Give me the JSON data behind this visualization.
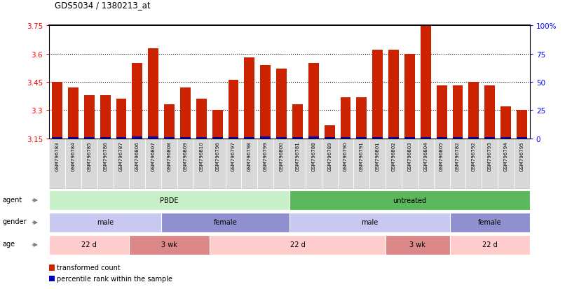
{
  "title": "GDS5034 / 1380213_at",
  "samples": [
    "GSM796783",
    "GSM796784",
    "GSM796785",
    "GSM796786",
    "GSM796787",
    "GSM796806",
    "GSM796807",
    "GSM796808",
    "GSM796809",
    "GSM796810",
    "GSM796796",
    "GSM796797",
    "GSM796798",
    "GSM796799",
    "GSM796800",
    "GSM796781",
    "GSM796788",
    "GSM796789",
    "GSM796790",
    "GSM796791",
    "GSM796801",
    "GSM796802",
    "GSM796803",
    "GSM796804",
    "GSM796805",
    "GSM796782",
    "GSM796792",
    "GSM796793",
    "GSM796794",
    "GSM796795"
  ],
  "red_values": [
    3.45,
    3.42,
    3.38,
    3.38,
    3.36,
    3.55,
    3.63,
    3.33,
    3.42,
    3.36,
    3.3,
    3.46,
    3.58,
    3.54,
    3.52,
    3.33,
    3.55,
    3.22,
    3.37,
    3.37,
    3.62,
    3.62,
    3.6,
    3.76,
    3.43,
    3.43,
    3.45,
    3.43,
    3.32,
    3.3
  ],
  "blue_heights": [
    0.008,
    0.008,
    0.008,
    0.008,
    0.008,
    0.01,
    0.01,
    0.008,
    0.008,
    0.008,
    0.008,
    0.008,
    0.008,
    0.01,
    0.008,
    0.008,
    0.01,
    0.006,
    0.008,
    0.008,
    0.008,
    0.008,
    0.008,
    0.008,
    0.006,
    0.008,
    0.008,
    0.008,
    0.006,
    0.006
  ],
  "ymin": 3.15,
  "ymax": 3.75,
  "yticks": [
    3.15,
    3.3,
    3.45,
    3.6,
    3.75
  ],
  "ytick_labels": [
    "3.15",
    "3.3",
    "3.45",
    "3.6",
    "3.75"
  ],
  "right_yticks": [
    0,
    25,
    50,
    75,
    100
  ],
  "dotted_lines": [
    3.3,
    3.45,
    3.6
  ],
  "bar_color_red": "#cc2200",
  "bar_color_blue": "#0000bb",
  "agent_groups": [
    {
      "label": "PBDE",
      "start": 0,
      "end": 15,
      "color": "#c8f0c8"
    },
    {
      "label": "untreated",
      "start": 15,
      "end": 30,
      "color": "#5cb85c"
    }
  ],
  "gender_groups": [
    {
      "label": "male",
      "start": 0,
      "end": 7,
      "color": "#c8c8f0"
    },
    {
      "label": "female",
      "start": 7,
      "end": 15,
      "color": "#9090d0"
    },
    {
      "label": "male",
      "start": 15,
      "end": 25,
      "color": "#c8c8f0"
    },
    {
      "label": "female",
      "start": 25,
      "end": 30,
      "color": "#9090d0"
    }
  ],
  "age_groups": [
    {
      "label": "22 d",
      "start": 0,
      "end": 5,
      "color": "#ffcccc"
    },
    {
      "label": "3 wk",
      "start": 5,
      "end": 10,
      "color": "#dd8888"
    },
    {
      "label": "22 d",
      "start": 10,
      "end": 21,
      "color": "#ffcccc"
    },
    {
      "label": "3 wk",
      "start": 21,
      "end": 25,
      "color": "#dd8888"
    },
    {
      "label": "22 d",
      "start": 25,
      "end": 30,
      "color": "#ffcccc"
    }
  ],
  "xtick_bg": "#d8d8d8",
  "legend_items": [
    {
      "label": "transformed count",
      "color": "#cc2200"
    },
    {
      "label": "percentile rank within the sample",
      "color": "#0000bb"
    }
  ]
}
